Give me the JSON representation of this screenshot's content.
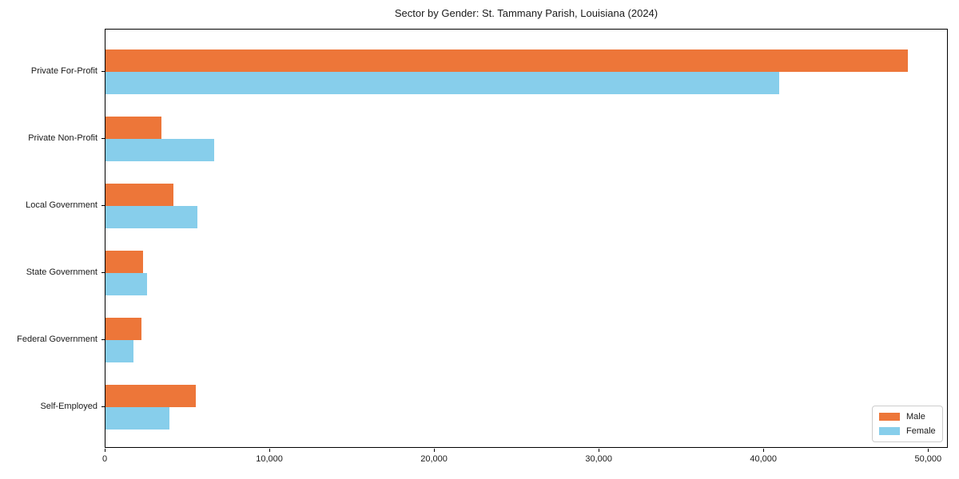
{
  "title": "Sector by Gender: St. Tammany Parish, Louisiana (2024)",
  "chart_data": {
    "type": "bar",
    "orientation": "horizontal",
    "title": "Sector by Gender: St. Tammany Parish, Louisiana (2024)",
    "categories": [
      "Private For-Profit",
      "Private Non-Profit",
      "Local Government",
      "State Government",
      "Federal Government",
      "Self-Employed"
    ],
    "series": [
      {
        "name": "Male",
        "color": "#ED7639",
        "values": [
          48700,
          3400,
          4100,
          2300,
          2200,
          5500
        ]
      },
      {
        "name": "Female",
        "color": "#87CEEB",
        "values": [
          40900,
          6600,
          5600,
          2500,
          1700,
          3900
        ]
      }
    ],
    "xlabel": "",
    "ylabel": "",
    "xlim": [
      0,
      51200
    ],
    "xticks": [
      0,
      10000,
      20000,
      30000,
      40000,
      50000
    ],
    "xtick_labels": [
      "0",
      "10,000",
      "20,000",
      "30,000",
      "40,000",
      "50,000"
    ],
    "grid": false,
    "legend_position": "lower right"
  },
  "colors": {
    "male": "#ED7639",
    "female": "#87CEEB",
    "text": "#1a1a1a",
    "spine": "#000000",
    "legend_border": "#cccccc",
    "background": "#ffffff"
  }
}
